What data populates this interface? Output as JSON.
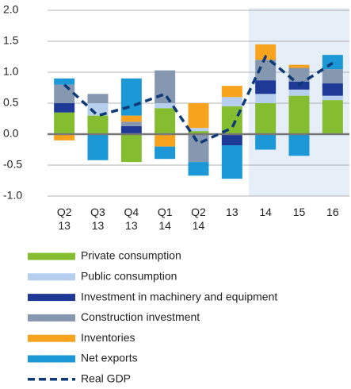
{
  "chart_data": {
    "type": "bar",
    "stacked": true,
    "categories": [
      "Q2 13",
      "Q3 13",
      "Q4 13",
      "Q1 14",
      "Q2 14",
      "13",
      "14",
      "15",
      "16"
    ],
    "series": [
      {
        "name": "Private consumption",
        "color": "#84bd2f",
        "values": [
          0.35,
          0.3,
          -0.45,
          0.42,
          0.05,
          0.45,
          0.5,
          0.62,
          0.55
        ]
      },
      {
        "name": "Public consumption",
        "color": "#b7cfee",
        "values": [
          0,
          0.2,
          0,
          0.08,
          0.05,
          0.15,
          0.15,
          0.1,
          0.07
        ]
      },
      {
        "name": "Investment in machinery and equipment",
        "color": "#1f3a96",
        "values": [
          0.15,
          0,
          0.13,
          0,
          0,
          -0.18,
          0.22,
          0.13,
          0.2
        ]
      },
      {
        "name": "Construction investment",
        "color": "#8698b0",
        "values": [
          0.3,
          0.15,
          0.07,
          0.53,
          -0.45,
          0,
          0.33,
          0.22,
          0.23
        ]
      },
      {
        "name": "Inventories",
        "color": "#f8a31e",
        "values": [
          -0.1,
          0,
          0.1,
          -0.2,
          0.4,
          0.18,
          0.25,
          0.05,
          0
        ]
      },
      {
        "name": "Net exports",
        "color": "#1b98d5",
        "values": [
          0.1,
          -0.42,
          0.6,
          -0.2,
          -0.22,
          -0.54,
          -0.25,
          -0.35,
          0.23
        ]
      },
      {
        "name": "Real GDP",
        "type": "line",
        "color": "#0e3a78",
        "dashed": true,
        "values": [
          0.8,
          0.3,
          0.45,
          0.65,
          -0.15,
          0.1,
          1.25,
          0.8,
          1.15
        ]
      }
    ],
    "ylim": [
      -1.0,
      2.0
    ],
    "yticks": [
      {
        "value": -1,
        "label": "-1.0"
      },
      {
        "value": -0.5,
        "label": "-0.5"
      },
      {
        "value": 0,
        "label": "0.0"
      },
      {
        "value": 0.5,
        "label": "0.5"
      },
      {
        "value": 1,
        "label": "1.0"
      },
      {
        "value": 1.5,
        "label": "1.5"
      },
      {
        "value": 2,
        "label": "2.0"
      }
    ],
    "grid": true
  }
}
